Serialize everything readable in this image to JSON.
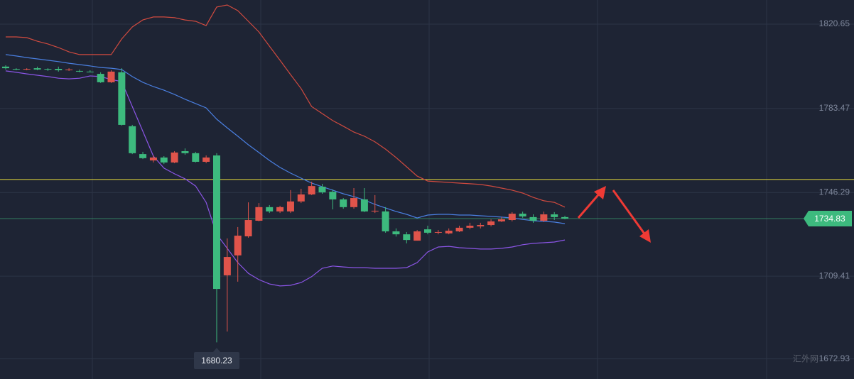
{
  "chart_data": {
    "type": "candlestick",
    "open": [
      1801.9,
      1800.9,
      1800.6,
      1801.2,
      1800.9,
      1800.9,
      1800.3,
      1800.0,
      1799.7,
      1798.7,
      1795.0,
      1799.4,
      1775.6,
      1763.3,
      1760.5,
      1761.8,
      1759.6,
      1764.6,
      1763.7,
      1759.9,
      1762.7,
      1709.8,
      1718.6,
      1727.0,
      1733.9,
      1739.9,
      1738.0,
      1738.0,
      1742.4,
      1745.5,
      1748.9,
      1746.7,
      1743.3,
      1739.9,
      1743.3,
      1738.0,
      1738.0,
      1729.2,
      1727.9,
      1725.1,
      1730.1,
      1728.6,
      1728.3,
      1729.2,
      1730.8,
      1731.4,
      1732.0,
      1733.6,
      1734.2,
      1737.0,
      1735.5,
      1733.9,
      1736.7,
      1735.5
    ],
    "high": [
      1802.5,
      1801.2,
      1801.2,
      1801.9,
      1801.2,
      1801.9,
      1801.2,
      1800.6,
      1800.3,
      1799.4,
      1800.3,
      1801.2,
      1776.2,
      1764.3,
      1762.7,
      1762.4,
      1764.6,
      1765.8,
      1764.3,
      1762.7,
      1763.7,
      1726.1,
      1731.1,
      1742.0,
      1741.7,
      1740.8,
      1740.5,
      1747.4,
      1748.0,
      1751.1,
      1750.2,
      1747.7,
      1743.9,
      1748.3,
      1748.3,
      1745.2,
      1739.9,
      1730.5,
      1728.9,
      1729.8,
      1731.7,
      1729.8,
      1730.5,
      1731.7,
      1733.0,
      1733.0,
      1734.5,
      1735.5,
      1737.7,
      1737.9,
      1736.7,
      1737.9,
      1737.7,
      1736.1
    ],
    "low": [
      1800.6,
      1800.3,
      1800.3,
      1800.3,
      1800.0,
      1799.7,
      1800.0,
      1799.4,
      1799.4,
      1794.7,
      1794.7,
      1775.9,
      1763.3,
      1761.1,
      1759.6,
      1758.9,
      1759.3,
      1763.0,
      1759.6,
      1759.3,
      1680.23,
      1685.0,
      1707.0,
      1726.4,
      1733.6,
      1737.3,
      1737.3,
      1737.3,
      1741.7,
      1745.2,
      1745.8,
      1738.9,
      1739.2,
      1739.2,
      1737.7,
      1737.3,
      1728.6,
      1726.9,
      1723.9,
      1725.1,
      1727.9,
      1727.9,
      1727.9,
      1728.9,
      1730.1,
      1730.5,
      1731.4,
      1733.3,
      1733.6,
      1735.2,
      1733.0,
      1733.3,
      1734.2,
      1734.5
    ],
    "close": [
      1801.2,
      1800.6,
      1800.9,
      1800.6,
      1800.6,
      1800.3,
      1800.6,
      1799.7,
      1799.4,
      1795.0,
      1799.7,
      1776.2,
      1763.7,
      1761.5,
      1761.8,
      1759.6,
      1764.0,
      1763.7,
      1759.9,
      1761.8,
      1703.8,
      1717.9,
      1727.3,
      1734.2,
      1739.9,
      1738.0,
      1739.9,
      1742.4,
      1745.5,
      1749.2,
      1746.4,
      1743.3,
      1739.9,
      1743.9,
      1738.0,
      1738.3,
      1729.2,
      1727.9,
      1725.4,
      1729.2,
      1728.6,
      1728.9,
      1729.5,
      1730.8,
      1731.7,
      1732.0,
      1733.6,
      1734.5,
      1737.0,
      1735.8,
      1733.9,
      1736.7,
      1735.5,
      1734.83
    ],
    "up_color": "#e0544b",
    "down_color": "#3dba7e",
    "bands": [
      {
        "color": "#cf4a3f",
        "values": [
          1815.0,
          1815.0,
          1814.7,
          1813.1,
          1811.9,
          1810.3,
          1808.4,
          1807.2,
          1807.2,
          1807.2,
          1807.2,
          1814.1,
          1819.4,
          1822.5,
          1823.8,
          1823.8,
          1823.5,
          1822.5,
          1821.9,
          1820.0,
          1828.2,
          1829.1,
          1826.6,
          1821.9,
          1817.2,
          1810.9,
          1804.7,
          1798.4,
          1792.2,
          1784.3,
          1781.2,
          1778.1,
          1775.6,
          1773.0,
          1771.2,
          1768.7,
          1765.5,
          1761.8,
          1757.7,
          1753.6,
          1751.4,
          1751.1,
          1750.8,
          1750.5,
          1750.2,
          1749.9,
          1749.2,
          1748.3,
          1747.4,
          1746.1,
          1744.2,
          1742.7,
          1742.0,
          1739.9
        ]
      },
      {
        "color": "#4a7fe0",
        "values": [
          1807.2,
          1806.6,
          1805.9,
          1805.3,
          1804.7,
          1804.1,
          1803.4,
          1802.8,
          1802.2,
          1801.5,
          1801.2,
          1800.6,
          1797.5,
          1795.0,
          1793.1,
          1791.5,
          1789.6,
          1787.5,
          1785.6,
          1783.7,
          1778.7,
          1774.9,
          1771.2,
          1767.4,
          1764.0,
          1760.5,
          1757.4,
          1754.9,
          1752.7,
          1750.5,
          1748.9,
          1747.4,
          1745.8,
          1744.5,
          1743.0,
          1741.1,
          1739.5,
          1738.0,
          1736.7,
          1735.1,
          1736.4,
          1736.7,
          1736.7,
          1736.4,
          1736.4,
          1736.1,
          1735.8,
          1735.5,
          1735.1,
          1734.5,
          1733.9,
          1733.6,
          1733.3,
          1732.6
        ]
      },
      {
        "color": "#8b55e6",
        "values": [
          1800.0,
          1799.4,
          1798.7,
          1798.1,
          1797.5,
          1796.8,
          1796.5,
          1796.8,
          1797.8,
          1797.5,
          1796.2,
          1795.3,
          1784.3,
          1773.4,
          1762.4,
          1757.1,
          1754.6,
          1752.4,
          1749.2,
          1742.0,
          1727.9,
          1721.7,
          1715.4,
          1710.7,
          1707.9,
          1706.0,
          1705.1,
          1705.4,
          1706.6,
          1709.2,
          1712.9,
          1713.9,
          1713.5,
          1713.2,
          1713.2,
          1712.9,
          1712.9,
          1712.9,
          1713.2,
          1715.4,
          1720.1,
          1722.3,
          1722.6,
          1722.0,
          1721.7,
          1721.4,
          1721.4,
          1721.7,
          1722.3,
          1723.3,
          1723.9,
          1724.2,
          1724.5,
          1725.4
        ]
      }
    ],
    "hline": {
      "value": 1752.1,
      "color": "#e8dc3a"
    },
    "last_price": {
      "value": 1734.83,
      "color": "#3dba7e"
    },
    "low_marker": 1680.23,
    "ylim": [
      1664.05,
      1831.3
    ],
    "yticks": [
      1672.93,
      1709.41,
      1746.29,
      1783.47,
      1820.65
    ],
    "grid": true
  },
  "watermark": "汇外网"
}
